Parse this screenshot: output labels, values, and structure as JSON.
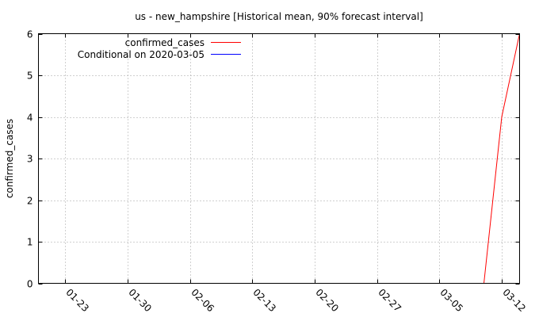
{
  "chart_data": {
    "type": "line",
    "title": "us - new_hampshire [Historical mean, 90% forecast interval]",
    "xlabel": "",
    "ylabel": "confirmed_cases",
    "x_ticks": [
      "01-23",
      "01-30",
      "02-06",
      "02-13",
      "02-20",
      "02-27",
      "03-05",
      "03-12"
    ],
    "x_range_days": [
      -3,
      51
    ],
    "ylim": [
      0,
      6
    ],
    "y_ticks": [
      0,
      1,
      2,
      3,
      4,
      5,
      6
    ],
    "grid": true,
    "legend_position": "top-left",
    "series": [
      {
        "name": "confirmed_cases",
        "color": "#ff0000",
        "points": [
          [
            47,
            0
          ],
          [
            49,
            4
          ],
          [
            51,
            6
          ]
        ]
      },
      {
        "name": "Conditional on 2020-03-05",
        "color": "#0000ff",
        "points": []
      }
    ]
  }
}
